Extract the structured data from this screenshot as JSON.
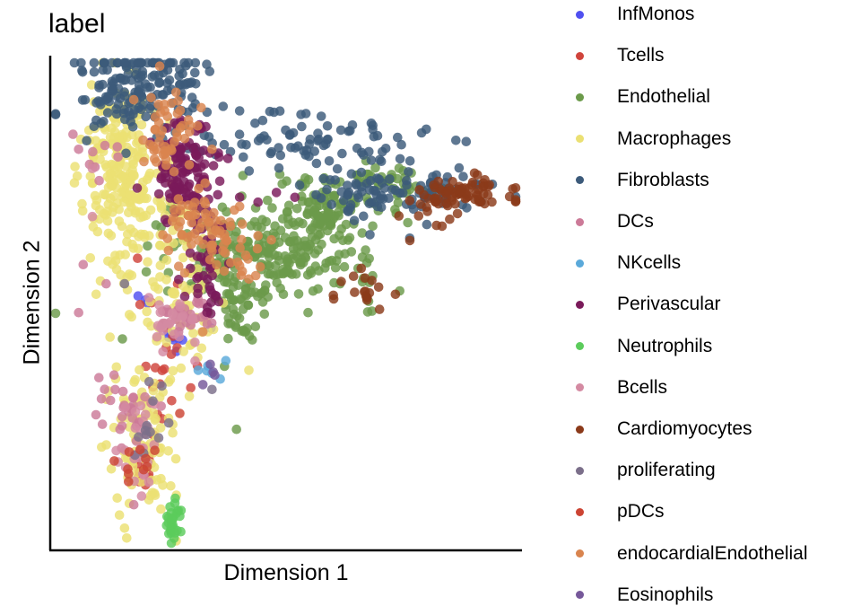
{
  "chart_data": {
    "type": "scatter",
    "title": "label",
    "xlabel": "Dimension 1",
    "ylabel": "Dimension 2",
    "xlim": [
      0,
      100
    ],
    "ylim": [
      0,
      100
    ],
    "grid": false,
    "legend_position": "right",
    "series": [
      {
        "name": "InfMonos",
        "color": "#5050f0",
        "clusters": [
          [
            26,
            44,
            2,
            2,
            10
          ],
          [
            19,
            51,
            1,
            1,
            2
          ]
        ],
        "points": [
          [
            20,
            50
          ]
        ]
      },
      {
        "name": "Tcells",
        "color": "#d0443c",
        "clusters": [
          [
            24,
            36,
            3,
            8,
            20
          ],
          [
            19,
            17,
            2,
            3,
            14
          ]
        ],
        "points": []
      },
      {
        "name": "Endothelial",
        "color": "#6b9a4a",
        "clusters": [
          [
            47,
            60,
            12,
            5,
            260
          ],
          [
            58,
            70,
            5,
            3,
            80
          ],
          [
            40,
            48,
            3,
            6,
            40
          ],
          [
            74,
            75,
            5,
            2,
            40
          ]
        ],
        "points": []
      },
      {
        "name": "Macrophages",
        "color": "#ebe073",
        "clusters": [
          [
            14,
            78,
            4,
            10,
            220
          ],
          [
            24,
            56,
            5,
            12,
            90
          ],
          [
            20,
            22,
            4,
            8,
            100
          ],
          [
            28,
            47,
            3,
            4,
            20
          ]
        ],
        "points": [
          [
            16,
            56
          ],
          [
            14,
            60
          ],
          [
            20,
            46
          ],
          [
            42,
            36
          ],
          [
            10,
            20
          ]
        ]
      },
      {
        "name": "Fibroblasts",
        "color": "#3c5a7a",
        "clusters": [
          [
            18,
            95,
            7,
            5,
            170
          ],
          [
            54,
            84,
            13,
            3,
            80
          ],
          [
            74,
            73,
            9,
            3,
            100
          ]
        ],
        "points": [
          [
            50,
            86
          ],
          [
            62,
            86
          ],
          [
            40,
            90
          ],
          [
            45,
            88
          ]
        ]
      },
      {
        "name": "DCs",
        "color": "#cc7a98",
        "clusters": [
          [
            10,
            82,
            3,
            3,
            8
          ],
          [
            28,
            48,
            3,
            2,
            30
          ],
          [
            15,
            28,
            3,
            4,
            30
          ]
        ],
        "points": [
          [
            6,
            58
          ],
          [
            5,
            48
          ],
          [
            11,
            54
          ],
          [
            17,
            8
          ],
          [
            5,
            82
          ]
        ]
      },
      {
        "name": "NKcells",
        "color": "#5aa9da",
        "clusters": [
          [
            33,
            36,
            2,
            1,
            4
          ]
        ],
        "points": [
          [
            37,
            38
          ],
          [
            31,
            36
          ]
        ]
      },
      {
        "name": "Perivascular",
        "color": "#7a1a5a",
        "clusters": [
          [
            28,
            77,
            4,
            5,
            120
          ],
          [
            33,
            57,
            3,
            6,
            40
          ]
        ],
        "points": [
          [
            40,
            72
          ],
          [
            44,
            71
          ],
          [
            48,
            73
          ],
          [
            52,
            72
          ],
          [
            36,
            65
          ]
        ]
      },
      {
        "name": "Neutrophils",
        "color": "#5ccc5c",
        "clusters": [
          [
            26,
            5,
            1,
            2,
            28
          ]
        ],
        "points": []
      },
      {
        "name": "Bcells",
        "color": "#d48aa2",
        "clusters": [
          [
            26,
            46,
            3,
            4,
            25
          ],
          [
            18,
            21,
            2,
            5,
            25
          ]
        ],
        "points": [
          [
            8,
            68
          ],
          [
            8,
            78
          ]
        ]
      },
      {
        "name": "Cardiomyocytes",
        "color": "#8b3a1a",
        "clusters": [
          [
            90,
            73,
            5,
            1.5,
            70
          ],
          [
            68,
            53,
            5,
            2,
            18
          ],
          [
            80,
            68,
            3,
            2,
            8
          ]
        ],
        "points": [
          [
            77,
            63
          ],
          [
            84,
            66
          ]
        ]
      },
      {
        "name": "proliferating",
        "color": "#7b6f8a",
        "clusters": [
          [
            21,
            24,
            2,
            5,
            12
          ]
        ],
        "points": [
          [
            15,
            54
          ],
          [
            34,
            32
          ]
        ]
      },
      {
        "name": "pDCs",
        "color": "#cc4433",
        "clusters": [
          [
            18,
            15,
            2,
            3,
            10
          ]
        ],
        "points": [
          [
            27,
            27
          ]
        ]
      },
      {
        "name": "endocardialEndothelial",
        "color": "#d9844e",
        "clusters": [
          [
            24,
            86,
            3,
            4,
            50
          ],
          [
            32,
            66,
            4,
            4,
            60
          ],
          [
            40,
            60,
            3,
            3,
            20
          ]
        ],
        "points": [
          [
            34,
            82
          ],
          [
            44,
            64
          ],
          [
            42,
            55
          ],
          [
            32,
            44
          ]
        ]
      },
      {
        "name": "Eosinophils",
        "color": "#76589a",
        "clusters": [
          [
            33,
            36,
            1,
            1,
            3
          ]
        ],
        "points": [
          [
            32,
            33
          ]
        ]
      }
    ]
  }
}
